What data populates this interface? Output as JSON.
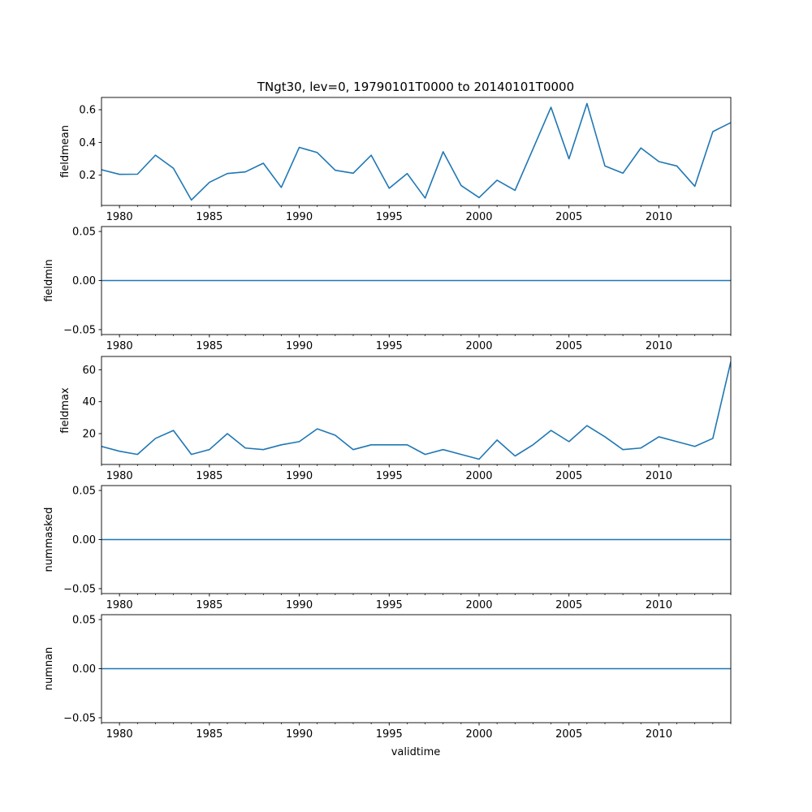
{
  "figure": {
    "title": "TNgt30, lev=0, 19790101T0000 to 20140101T0000",
    "xlabel": "validtime"
  },
  "colors": {
    "line": "#1f77b4",
    "axes": "#000000",
    "background": "#ffffff"
  },
  "chart_data": [
    {
      "type": "line",
      "name": "fieldmean",
      "ylabel": "fieldmean",
      "xlim": [
        1979,
        2014
      ],
      "ylim": [
        0.015,
        0.675
      ],
      "xticks": [
        1980,
        1985,
        1990,
        1995,
        2000,
        2005,
        2010
      ],
      "xtick_labels": [
        "1980",
        "1985",
        "1990",
        "1995",
        "2000",
        "2005",
        "2010"
      ],
      "yticks": [
        0.2,
        0.4,
        0.6
      ],
      "ytick_labels": [
        "0.2",
        "0.4",
        "0.6"
      ],
      "x": [
        1979,
        1980,
        1981,
        1982,
        1983,
        1984,
        1985,
        1986,
        1987,
        1988,
        1989,
        1990,
        1991,
        1992,
        1993,
        1994,
        1995,
        1996,
        1997,
        1998,
        1999,
        2000,
        2001,
        2002,
        2003,
        2004,
        2005,
        2006,
        2007,
        2008,
        2009,
        2010,
        2011,
        2012,
        2013,
        2014
      ],
      "values": [
        0.233,
        0.205,
        0.206,
        0.322,
        0.242,
        0.048,
        0.156,
        0.21,
        0.22,
        0.273,
        0.125,
        0.37,
        0.338,
        0.23,
        0.212,
        0.322,
        0.12,
        0.21,
        0.06,
        0.343,
        0.137,
        0.063,
        0.169,
        0.107,
        0.361,
        0.615,
        0.3,
        0.638,
        0.256,
        0.212,
        0.366,
        0.283,
        0.256,
        0.132,
        0.466,
        0.521
      ]
    },
    {
      "type": "line",
      "name": "fieldmin",
      "ylabel": "fieldmin",
      "xlim": [
        1979,
        2014
      ],
      "ylim": [
        -0.055,
        0.055
      ],
      "xticks": [
        1980,
        1985,
        1990,
        1995,
        2000,
        2005,
        2010
      ],
      "xtick_labels": [
        "1980",
        "1985",
        "1990",
        "1995",
        "2000",
        "2005",
        "2010"
      ],
      "yticks": [
        -0.05,
        0.0,
        0.05
      ],
      "ytick_labels": [
        "−0.05",
        "0.00",
        "0.05"
      ],
      "x": [
        1979,
        2014
      ],
      "values": [
        0,
        0
      ]
    },
    {
      "type": "line",
      "name": "fieldmax",
      "ylabel": "fieldmax",
      "xlim": [
        1979,
        2014
      ],
      "ylim": [
        0.7,
        68.3
      ],
      "xticks": [
        1980,
        1985,
        1990,
        1995,
        2000,
        2005,
        2010
      ],
      "xtick_labels": [
        "1980",
        "1985",
        "1990",
        "1995",
        "2000",
        "2005",
        "2010"
      ],
      "yticks": [
        20,
        40,
        60
      ],
      "ytick_labels": [
        "20",
        "40",
        "60"
      ],
      "x": [
        1979,
        1980,
        1981,
        1982,
        1983,
        1984,
        1985,
        1986,
        1987,
        1988,
        1989,
        1990,
        1991,
        1992,
        1993,
        1994,
        1995,
        1996,
        1997,
        1998,
        1999,
        2000,
        2001,
        2002,
        2003,
        2004,
        2005,
        2006,
        2007,
        2008,
        2009,
        2010,
        2011,
        2012,
        2013,
        2014
      ],
      "values": [
        12,
        9,
        7,
        17,
        22,
        7,
        10,
        20,
        11,
        10,
        13,
        15,
        23,
        19,
        10,
        13,
        13,
        13,
        7,
        10,
        7,
        4,
        16,
        6,
        13,
        22,
        15,
        25,
        18,
        10,
        11,
        18,
        15,
        12,
        17,
        65
      ]
    },
    {
      "type": "line",
      "name": "nummasked",
      "ylabel": "nummasked",
      "xlim": [
        1979,
        2014
      ],
      "ylim": [
        -0.055,
        0.055
      ],
      "xticks": [
        1980,
        1985,
        1990,
        1995,
        2000,
        2005,
        2010
      ],
      "xtick_labels": [
        "1980",
        "1985",
        "1990",
        "1995",
        "2000",
        "2005",
        "2010"
      ],
      "yticks": [
        -0.05,
        0.0,
        0.05
      ],
      "ytick_labels": [
        "−0.05",
        "0.00",
        "0.05"
      ],
      "x": [
        1979,
        2014
      ],
      "values": [
        0,
        0
      ]
    },
    {
      "type": "line",
      "name": "numnan",
      "ylabel": "numnan",
      "xlim": [
        1979,
        2014
      ],
      "ylim": [
        -0.055,
        0.055
      ],
      "xticks": [
        1980,
        1985,
        1990,
        1995,
        2000,
        2005,
        2010
      ],
      "xtick_labels": [
        "1980",
        "1985",
        "1990",
        "1995",
        "2000",
        "2005",
        "2010"
      ],
      "yticks": [
        -0.05,
        0.0,
        0.05
      ],
      "ytick_labels": [
        "−0.05",
        "0.00",
        "0.05"
      ],
      "x": [
        1979,
        2014
      ],
      "values": [
        0,
        0
      ]
    }
  ]
}
